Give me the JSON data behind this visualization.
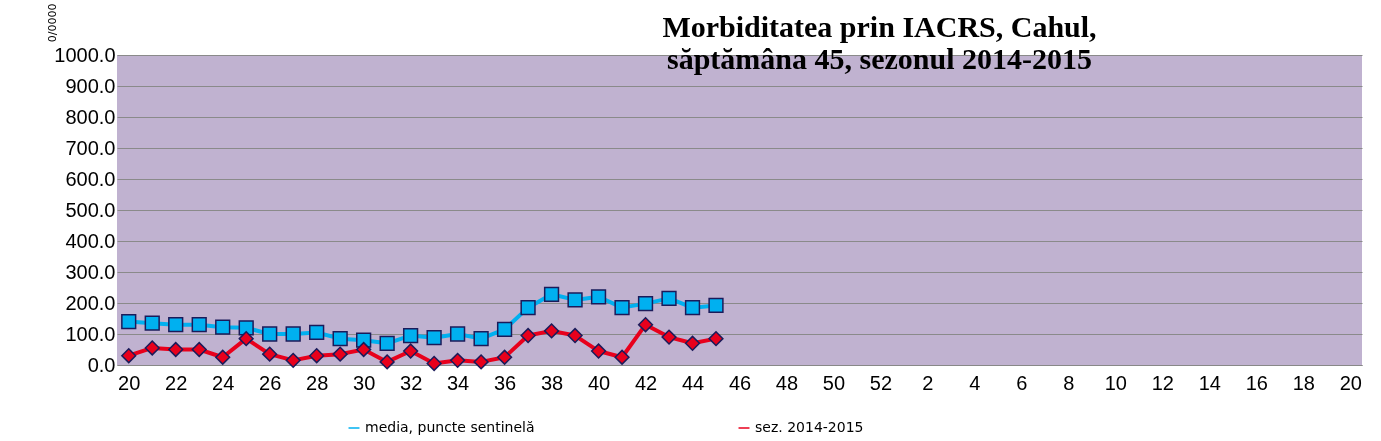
{
  "chart_data": {
    "type": "line",
    "title": "Morbiditatea prin IACRS, Cahul,\nsăptămâna 45, sezonul  2014-2015",
    "ylabel": "0/0000",
    "categories": [
      "20",
      null,
      "22",
      null,
      "24",
      null,
      "26",
      null,
      "28",
      null,
      "30",
      null,
      "32",
      null,
      "34",
      null,
      "36",
      null,
      "38",
      null,
      "40",
      null,
      "42",
      null,
      "44",
      null,
      "46",
      null,
      "48",
      null,
      "50",
      null,
      "52",
      null,
      "2",
      null,
      "4",
      null,
      "6",
      null,
      "8",
      null,
      "10",
      null,
      "12",
      null,
      "14",
      null,
      "16",
      null,
      "18",
      null,
      "20"
    ],
    "series": [
      {
        "name": "media, puncte sentinelă",
        "color": "#00b0f0",
        "marker": "square",
        "values": [
          140,
          135,
          130,
          130,
          122,
          120,
          100,
          100,
          105,
          85,
          80,
          70,
          95,
          88,
          100,
          85,
          115,
          185,
          228,
          210,
          220,
          185,
          198,
          215,
          185,
          192,
          null,
          null,
          null,
          null,
          null,
          null,
          null,
          null,
          null,
          null,
          null,
          null,
          null,
          null,
          null,
          null,
          null,
          null,
          null,
          null,
          null,
          null,
          null,
          null,
          null,
          null,
          null
        ]
      },
      {
        "name": "sez. 2014-2015",
        "color": "#e8001c",
        "marker": "diamond",
        "values": [
          30,
          55,
          50,
          50,
          25,
          85,
          35,
          15,
          30,
          35,
          50,
          10,
          45,
          5,
          15,
          10,
          25,
          95,
          110,
          95,
          45,
          25,
          130,
          90,
          70,
          85,
          null,
          null,
          null,
          null,
          null,
          null,
          null,
          null,
          null,
          null,
          null,
          null,
          null,
          null,
          null,
          null,
          null,
          null,
          null,
          null,
          null,
          null,
          null,
          null,
          null,
          null,
          null
        ]
      }
    ],
    "ylim": [
      0,
      1000
    ],
    "yticks": [
      {
        "value": 0,
        "label": "0.0"
      },
      {
        "value": 100,
        "label": "100.0"
      },
      {
        "value": 200,
        "label": "200.0"
      },
      {
        "value": 300,
        "label": "300.0"
      },
      {
        "value": 400,
        "label": "400.0"
      },
      {
        "value": 500,
        "label": "500.0"
      },
      {
        "value": 600,
        "label": "600.0"
      },
      {
        "value": 700,
        "label": "700.0"
      },
      {
        "value": 800,
        "label": "800.0"
      },
      {
        "value": 900,
        "label": "900.0"
      },
      {
        "value": 1000,
        "label": "1000.0"
      }
    ],
    "grid": "y",
    "legend": "bottom",
    "line_style": "solid"
  }
}
